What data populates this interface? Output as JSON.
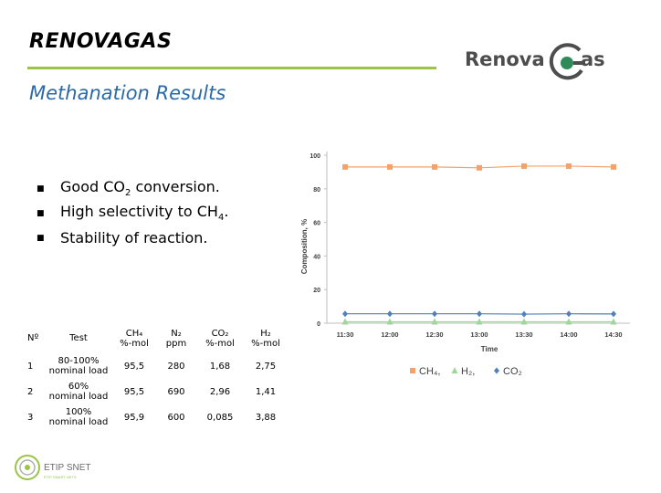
{
  "header": {
    "title": "RENOVAGAS",
    "subtitle": "Methanation Results",
    "logo_text_left": "Renova",
    "logo_text_right": "as",
    "accent_color": "#9cc547"
  },
  "bullets": [
    {
      "pre": "Good CO",
      "sub": "2",
      "post": " conversion."
    },
    {
      "pre": "High selectivity to CH",
      "sub": "4",
      "post": "."
    },
    {
      "pre": "Stability of reaction.",
      "sub": "",
      "post": ""
    }
  ],
  "table": {
    "headers": {
      "no": "Nº",
      "test": "Test",
      "ch4": "CH₄",
      "ch4_unit": "%-mol",
      "n2": "N₂",
      "n2_unit": "ppm",
      "co2": "CO₂",
      "co2_unit": "%-mol",
      "h2": "H₂",
      "h2_unit": "%-mol"
    },
    "rows": [
      {
        "no": "1",
        "test_a": "80-100%",
        "test_b": "nominal load",
        "ch4": "95,5",
        "n2": "280",
        "co2": "1,68",
        "h2": "2,75"
      },
      {
        "no": "2",
        "test_a": "60%",
        "test_b": "nominal load",
        "ch4": "95,5",
        "n2": "690",
        "co2": "2,96",
        "h2": "1,41"
      },
      {
        "no": "3",
        "test_a": "100%",
        "test_b": "nominal load",
        "ch4": "95,9",
        "n2": "600",
        "co2": "0,085",
        "h2": "3,88"
      }
    ]
  },
  "footer": {
    "logo_name": "ETIP SNET",
    "logo_tagline": "ETIP SMART NETS"
  },
  "chart_data": {
    "type": "line",
    "title": "",
    "xlabel": "Time",
    "ylabel": "Composition, %",
    "categories": [
      "11:30",
      "12:00",
      "12:30",
      "13:00",
      "13:30",
      "14:00",
      "14:30"
    ],
    "yticks": [
      "0",
      "20",
      "40",
      "60",
      "80",
      "100"
    ],
    "ylim": [
      0,
      100
    ],
    "grid": false,
    "legend_position": "bottom",
    "series": [
      {
        "name": "CH₄",
        "marker": "square",
        "color": "#f4a26a",
        "values": [
          93,
          93,
          93,
          92.5,
          93.5,
          93.5,
          93
        ]
      },
      {
        "name": "H₂",
        "marker": "triangle",
        "color": "#9fd69a",
        "values": [
          0.8,
          0.8,
          0.8,
          0.8,
          0.8,
          0.8,
          0.8
        ]
      },
      {
        "name": "CO₂",
        "marker": "diamond",
        "color": "#4e81bd",
        "values": [
          5.6,
          5.6,
          5.6,
          5.6,
          5.4,
          5.6,
          5.5
        ]
      }
    ]
  }
}
